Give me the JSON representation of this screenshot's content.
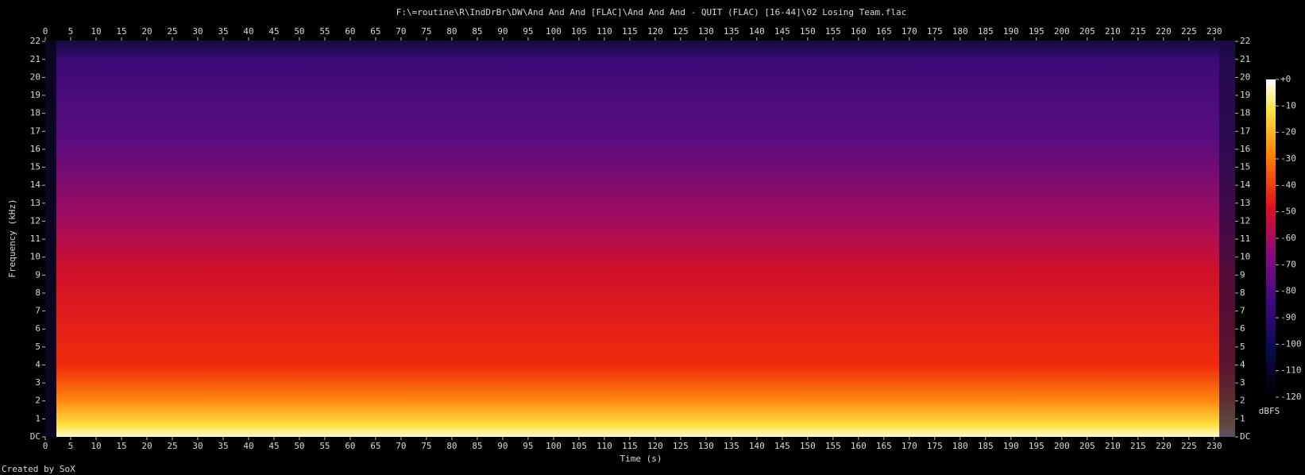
{
  "chart_data": {
    "type": "spectrogram",
    "title": "F:\\=routine\\R\\IndDrBr\\DW\\And And And [FLAC]\\And And And - QUIT (FLAC) [16-44]\\02 Losing Team.flac",
    "xlabel": "Time (s)",
    "ylabel": "Frequency (kHz)",
    "footer": "Created by SoX",
    "xlim": [
      0,
      234.1
    ],
    "xticks": [
      0,
      5,
      10,
      15,
      20,
      25,
      30,
      35,
      40,
      45,
      50,
      55,
      60,
      65,
      70,
      75,
      80,
      85,
      90,
      95,
      100,
      105,
      110,
      115,
      120,
      125,
      130,
      135,
      140,
      145,
      150,
      155,
      160,
      165,
      170,
      175,
      180,
      185,
      190,
      195,
      200,
      205,
      210,
      215,
      220,
      225,
      230
    ],
    "ylim": [
      0,
      22.05
    ],
    "yticks": [
      {
        "value": 0,
        "label": "DC"
      },
      1,
      2,
      3,
      4,
      5,
      6,
      7,
      8,
      9,
      10,
      11,
      12,
      13,
      14,
      15,
      16,
      17,
      18,
      19,
      20,
      21,
      22
    ],
    "colorbar": {
      "label": "dBFS",
      "lim": [
        -120,
        0
      ],
      "ticks": [
        {
          "value": 0,
          "label": "+0"
        },
        -10,
        -20,
        -30,
        -40,
        -50,
        -60,
        -70,
        -80,
        -90,
        -100,
        -110,
        -120
      ]
    }
  }
}
